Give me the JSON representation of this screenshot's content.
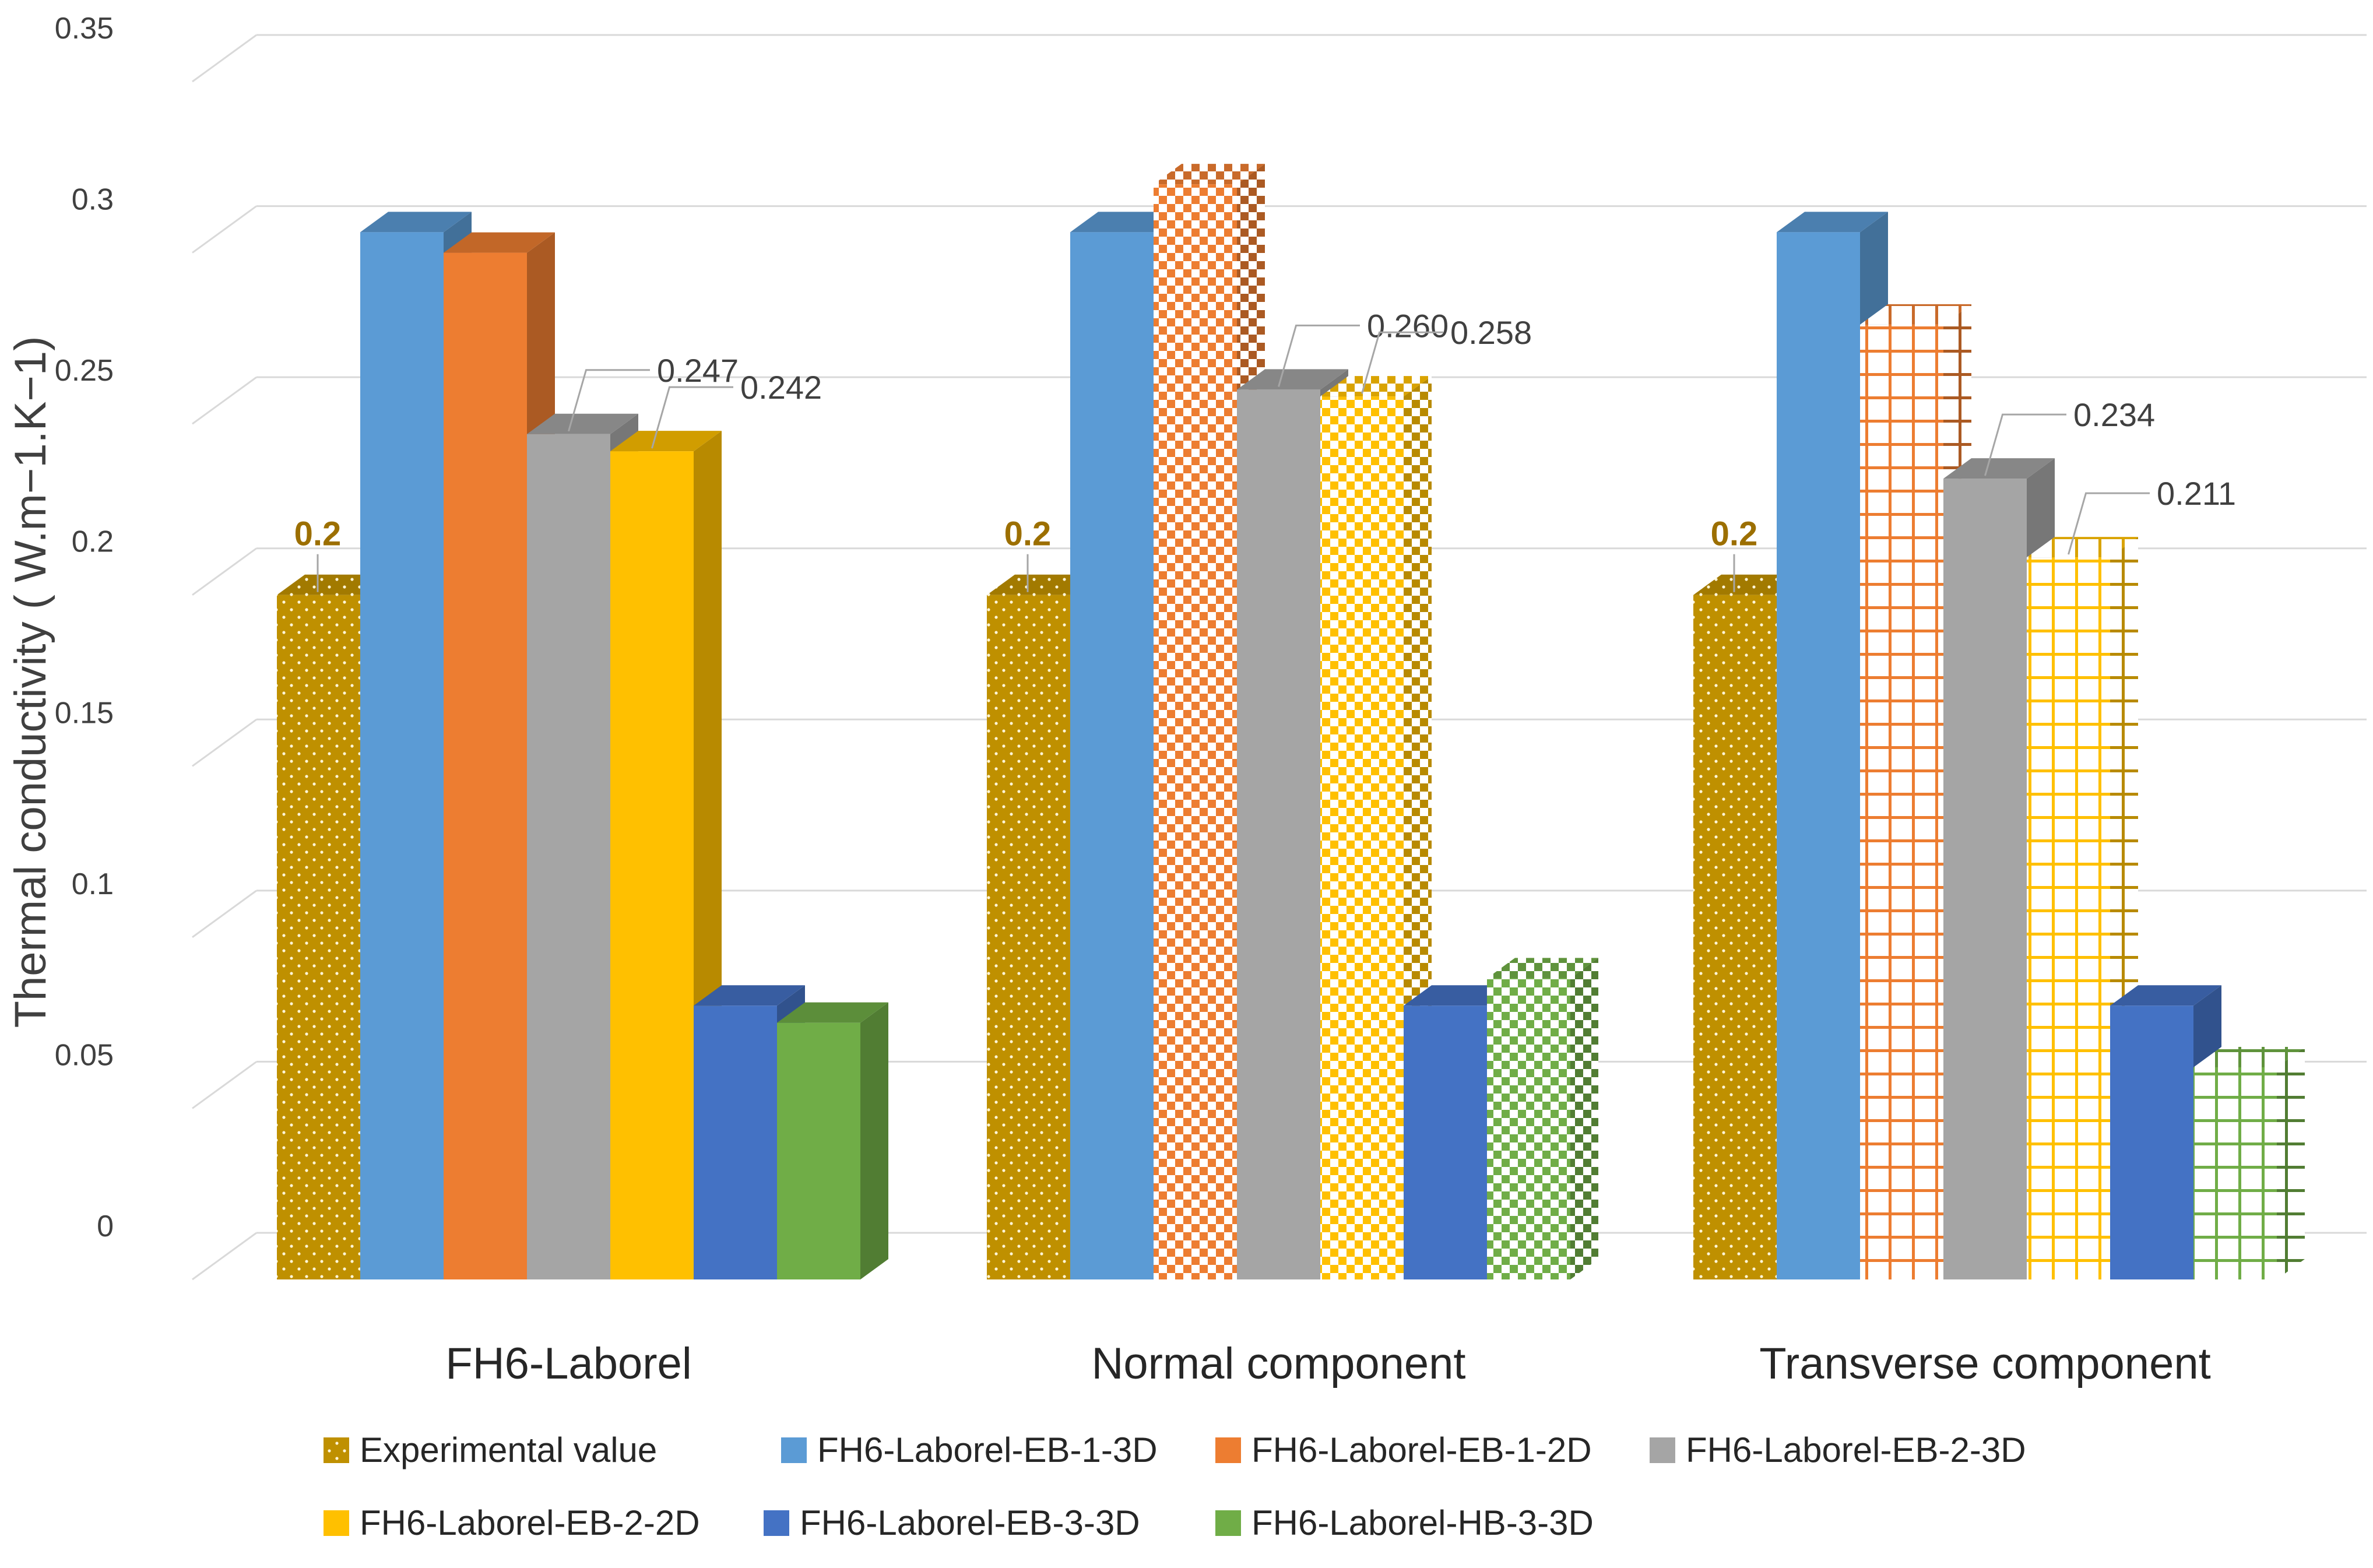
{
  "chart_data": {
    "type": "bar",
    "style": "3d-clustered",
    "title": "",
    "xlabel": "",
    "ylabel": "Thermal conductivity ( W.m−1.K−1)",
    "ylim": [
      0,
      0.35
    ],
    "ytick_step": 0.05,
    "yticks": [
      "0",
      "0.05",
      "0.1",
      "0.15",
      "0.2",
      "0.25",
      "0.3",
      "0.35"
    ],
    "grid": true,
    "legend_position": "bottom",
    "categories": [
      "FH6-Laborel",
      "Normal component",
      "Transverse component"
    ],
    "series": [
      {
        "name": "Experimental value",
        "values": [
          0.2,
          0.2,
          0.2
        ],
        "labels": [
          "0.2",
          "0.2",
          "0.2"
        ],
        "color": "#BF9000",
        "pattern": "dots"
      },
      {
        "name": "FH6-Laborel-EB-1-3D",
        "values": [
          0.306,
          0.306,
          0.306
        ],
        "labels": [
          "",
          "",
          ""
        ],
        "color": "#5B9BD5",
        "pattern": "solid"
      },
      {
        "name": "FH6-Laborel-EB-1-2D",
        "values": [
          0.3,
          0.32,
          0.279
        ],
        "labels": [
          "",
          "",
          ""
        ],
        "color": "#ED7D31",
        "pattern": [
          "solid",
          "check",
          "grid"
        ]
      },
      {
        "name": "FH6-Laborel-EB-2-3D",
        "values": [
          0.247,
          0.26,
          0.234
        ],
        "labels": [
          "0.247",
          "0.260",
          "0.234"
        ],
        "color": "#A5A5A5",
        "pattern": "solid"
      },
      {
        "name": "FH6-Laborel-EB-2-2D",
        "values": [
          0.242,
          0.258,
          0.211
        ],
        "labels": [
          "0.242",
          "0.258",
          "0.211"
        ],
        "color": "#FFC000",
        "pattern": [
          "solid",
          "check",
          "grid"
        ]
      },
      {
        "name": "FH6-Laborel-EB-3-3D",
        "values": [
          0.08,
          0.08,
          0.08
        ],
        "labels": [
          "",
          "",
          ""
        ],
        "color": "#4472C4",
        "pattern": "solid"
      },
      {
        "name": "FH6-Laborel-HB-3-3D",
        "values": [
          0.075,
          0.088,
          0.062
        ],
        "labels": [
          "",
          "",
          ""
        ],
        "color": "#70AD47",
        "pattern": [
          "solid",
          "check",
          "grid"
        ]
      }
    ]
  }
}
